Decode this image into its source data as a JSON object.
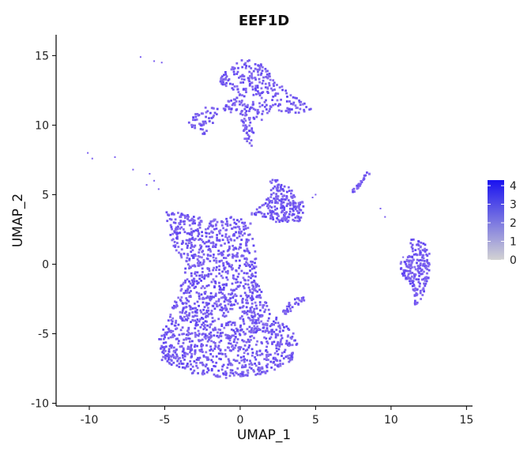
{
  "chart_data": {
    "type": "scatter",
    "title": "EEF1D",
    "xlabel": "UMAP_1",
    "ylabel": "UMAP_2",
    "xlim": [
      -12.2,
      15.4
    ],
    "ylim": [
      -10.2,
      16.5
    ],
    "x_ticks": [
      -10,
      -5,
      0,
      5,
      10,
      15
    ],
    "y_ticks": [
      -10,
      -5,
      0,
      5,
      10,
      15
    ],
    "grid": false,
    "legend": {
      "placement": "right",
      "type": "colorbar",
      "ticks": [
        0,
        1,
        2,
        3,
        4
      ],
      "min": 0,
      "max": 4.3,
      "color_low": "#d3d3d3",
      "color_high": "#1a12f0"
    },
    "point_color_typical": "#7a5ef0",
    "clusters": [
      {
        "label": "large-lower-cluster",
        "approx_x_range": [
          -5.4,
          3.8
        ],
        "approx_y_range": [
          -8.2,
          4.0
        ]
      },
      {
        "label": "top-cluster",
        "approx_x_range": [
          -3.5,
          4.9
        ],
        "approx_y_range": [
          8.5,
          14.8
        ]
      },
      {
        "label": "middle-cluster",
        "approx_x_range": [
          0.5,
          5.0
        ],
        "approx_y_range": [
          3.0,
          6.2
        ]
      },
      {
        "label": "right-cluster",
        "approx_x_range": [
          10.5,
          12.8
        ],
        "approx_y_range": [
          -3.0,
          2.0
        ]
      },
      {
        "label": "small-upper-right-cluster",
        "approx_x_range": [
          7.3,
          8.5
        ],
        "approx_y_range": [
          5.2,
          6.8
        ]
      }
    ]
  }
}
